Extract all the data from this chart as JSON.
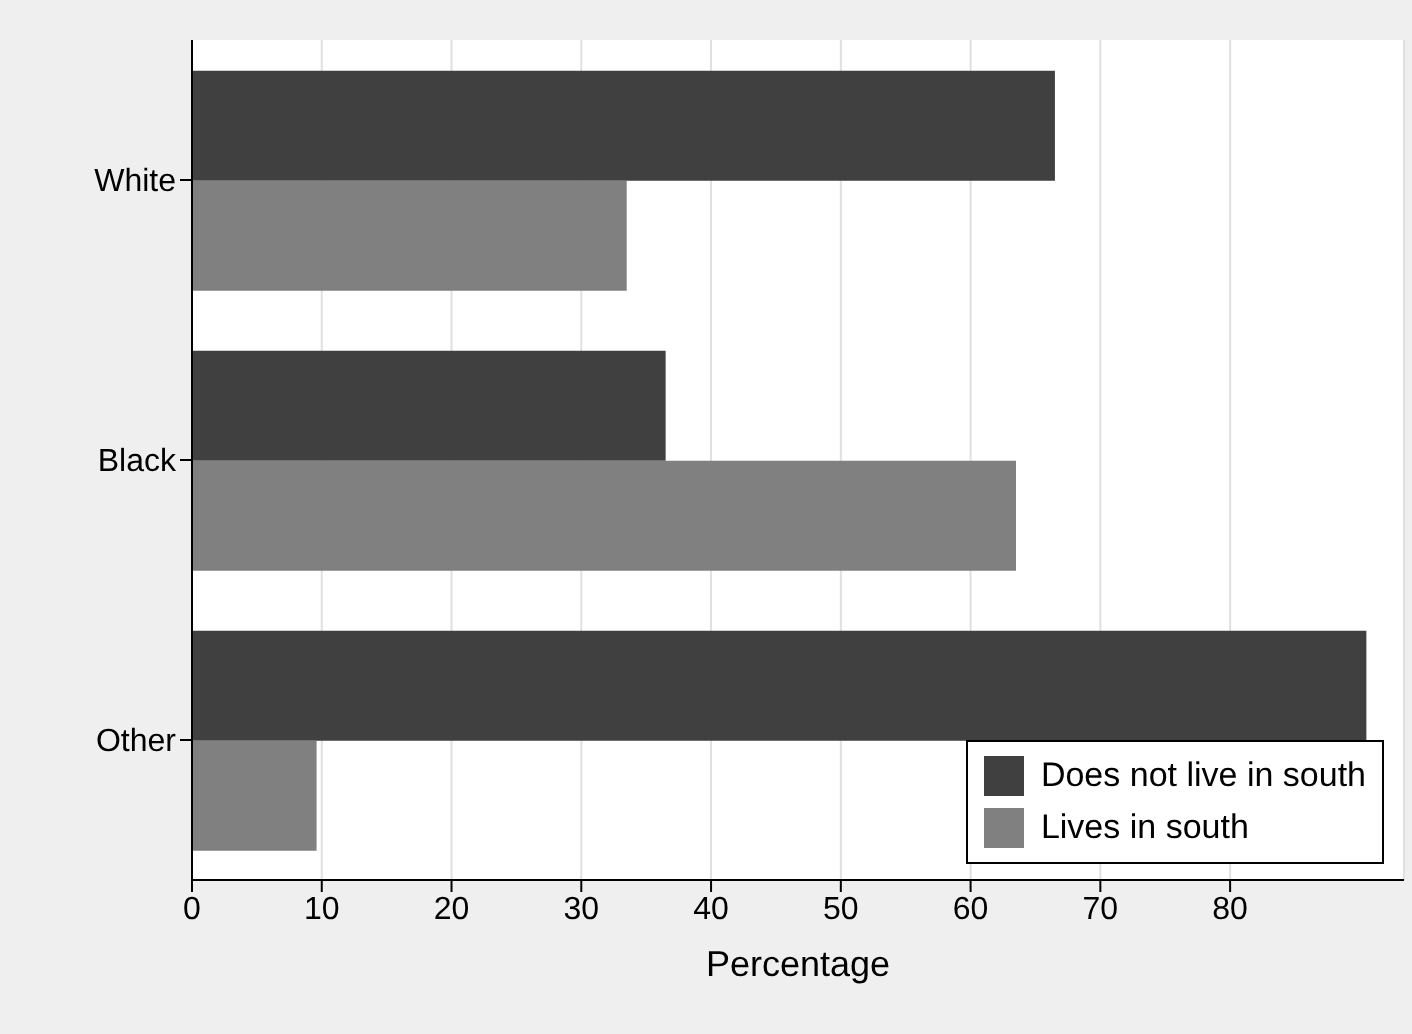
{
  "chart_data": {
    "type": "bar",
    "orientation": "horizontal",
    "categories": [
      "White",
      "Black",
      "Other"
    ],
    "xlabel": "Percentage",
    "xlim": [
      0,
      93.4
    ],
    "xticks": [
      0,
      10,
      20,
      30,
      40,
      50,
      60,
      70,
      80
    ],
    "grid": "x",
    "legend": "bottom right",
    "series": [
      {
        "name": "Does not live in south",
        "color": "#404040",
        "values": [
          66.5,
          36.5,
          90.5
        ]
      },
      {
        "name": "Lives in south",
        "color": "#808080",
        "values": [
          33.5,
          63.5,
          9.6
        ]
      }
    ]
  }
}
